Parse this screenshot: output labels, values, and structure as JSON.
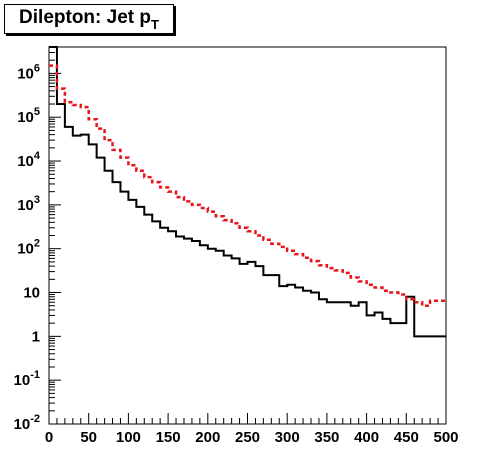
{
  "chart_data": {
    "type": "histogram-step",
    "title": "Dilepton: Jet p",
    "title_subscript": "T",
    "xlim": [
      0,
      500
    ],
    "ylim": [
      0.01,
      4000000
    ],
    "yscale": "log",
    "grid": false,
    "x_ticks": [
      0,
      50,
      100,
      150,
      200,
      250,
      300,
      350,
      400,
      450,
      500
    ],
    "y_tick_labels": [
      {
        "value": 0.01,
        "base": "10",
        "exp": "-2"
      },
      {
        "value": 0.1,
        "base": "10",
        "exp": "-1"
      },
      {
        "value": 1,
        "base": "1",
        "exp": ""
      },
      {
        "value": 10,
        "base": "10",
        "exp": ""
      },
      {
        "value": 100,
        "base": "10",
        "exp": "2"
      },
      {
        "value": 1000,
        "base": "10",
        "exp": "3"
      },
      {
        "value": 10000,
        "base": "10",
        "exp": "4"
      },
      {
        "value": 100000,
        "base": "10",
        "exp": "5"
      },
      {
        "value": 1000000,
        "base": "10",
        "exp": "6"
      }
    ],
    "bin_width": 10,
    "series": [
      {
        "color": "#000000",
        "style": "solid",
        "bin_starts": [
          0,
          10,
          20,
          30,
          40,
          50,
          60,
          70,
          80,
          90,
          100,
          110,
          120,
          130,
          140,
          150,
          160,
          170,
          180,
          190,
          200,
          210,
          220,
          230,
          240,
          250,
          260,
          270,
          280,
          290,
          300,
          310,
          320,
          330,
          340,
          350,
          360,
          370,
          380,
          390,
          400,
          410,
          420,
          430,
          440,
          450,
          460,
          470,
          480,
          490
        ],
        "values": [
          4000000,
          200000,
          60000,
          38000,
          40000,
          24000,
          12000,
          6000,
          3300,
          2000,
          1300,
          900,
          600,
          420,
          300,
          250,
          190,
          170,
          150,
          120,
          100,
          90,
          70,
          60,
          45,
          50,
          40,
          25,
          25,
          14,
          15,
          13,
          11,
          10,
          7,
          6,
          6,
          6,
          5,
          6,
          3,
          3.5,
          2.5,
          2,
          2,
          8,
          1,
          1,
          1,
          1
        ]
      },
      {
        "color": "#e8141a",
        "style": "dashed",
        "bin_starts": [
          0,
          10,
          20,
          30,
          40,
          50,
          60,
          70,
          80,
          90,
          100,
          110,
          120,
          130,
          140,
          150,
          160,
          170,
          180,
          190,
          200,
          210,
          220,
          230,
          240,
          250,
          260,
          270,
          280,
          290,
          300,
          310,
          320,
          330,
          340,
          350,
          360,
          370,
          380,
          390,
          400,
          410,
          420,
          430,
          440,
          450,
          460,
          470,
          480,
          490
        ],
        "values": [
          1500000,
          450000,
          220000,
          190000,
          170000,
          90000,
          55000,
          30000,
          18000,
          12000,
          8000,
          6000,
          4300,
          3300,
          2500,
          2000,
          1500,
          1200,
          1000,
          850,
          700,
          550,
          450,
          380,
          300,
          250,
          200,
          160,
          130,
          110,
          90,
          75,
          62,
          52,
          42,
          36,
          32,
          28,
          22,
          18,
          15,
          13,
          11,
          10,
          9,
          7,
          6,
          5,
          6.5,
          6.5
        ]
      }
    ]
  }
}
